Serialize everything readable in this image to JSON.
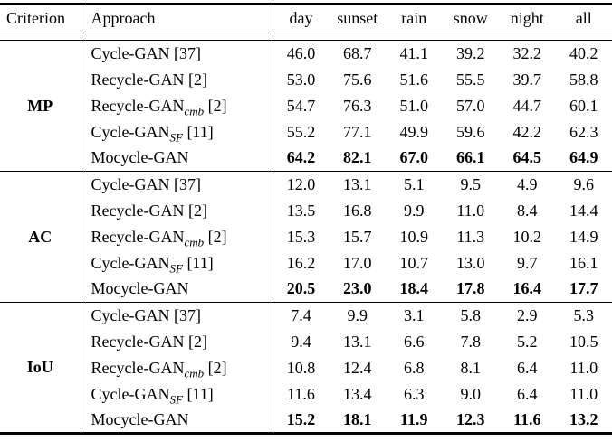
{
  "table": {
    "columns": [
      "Criterion",
      "Approach",
      "day",
      "sunset",
      "rain",
      "snow",
      "night",
      "all"
    ],
    "groups": [
      {
        "criterion": "MP",
        "rows": [
          {
            "approach": "Cycle-GAN",
            "sub": "",
            "ref": "[37]",
            "bold": false,
            "values": [
              "46.0",
              "68.7",
              "41.1",
              "39.2",
              "32.2",
              "40.2"
            ]
          },
          {
            "approach": "Recycle-GAN",
            "sub": "",
            "ref": "[2]",
            "bold": false,
            "values": [
              "53.0",
              "75.6",
              "51.6",
              "55.5",
              "39.7",
              "58.8"
            ]
          },
          {
            "approach": "Recycle-GAN",
            "sub": "cmb",
            "ref": "[2]",
            "bold": false,
            "values": [
              "54.7",
              "76.3",
              "51.0",
              "57.0",
              "44.7",
              "60.1"
            ]
          },
          {
            "approach": "Cycle-GAN",
            "sub": "SF",
            "ref": "[11]",
            "bold": false,
            "values": [
              "55.2",
              "77.1",
              "49.9",
              "59.6",
              "42.2",
              "62.3"
            ]
          },
          {
            "approach": "Mocycle-GAN",
            "sub": "",
            "ref": "",
            "bold": true,
            "values": [
              "64.2",
              "82.1",
              "67.0",
              "66.1",
              "64.5",
              "64.9"
            ]
          }
        ]
      },
      {
        "criterion": "AC",
        "rows": [
          {
            "approach": "Cycle-GAN",
            "sub": "",
            "ref": "[37]",
            "bold": false,
            "values": [
              "12.0",
              "13.1",
              "5.1",
              "9.5",
              "4.9",
              "9.6"
            ]
          },
          {
            "approach": "Recycle-GAN",
            "sub": "",
            "ref": "[2]",
            "bold": false,
            "values": [
              "13.5",
              "16.8",
              "9.9",
              "11.0",
              "8.4",
              "14.4"
            ]
          },
          {
            "approach": "Recycle-GAN",
            "sub": "cmb",
            "ref": "[2]",
            "bold": false,
            "values": [
              "15.3",
              "15.7",
              "10.9",
              "11.3",
              "10.2",
              "14.9"
            ]
          },
          {
            "approach": "Cycle-GAN",
            "sub": "SF",
            "ref": "[11]",
            "bold": false,
            "values": [
              "16.2",
              "17.0",
              "10.7",
              "13.0",
              "9.7",
              "16.1"
            ]
          },
          {
            "approach": "Mocycle-GAN",
            "sub": "",
            "ref": "",
            "bold": true,
            "values": [
              "20.5",
              "23.0",
              "18.4",
              "17.8",
              "16.4",
              "17.7"
            ]
          }
        ]
      },
      {
        "criterion": "IoU",
        "rows": [
          {
            "approach": "Cycle-GAN",
            "sub": "",
            "ref": "[37]",
            "bold": false,
            "values": [
              "7.4",
              "9.9",
              "3.1",
              "5.8",
              "2.9",
              "5.3"
            ]
          },
          {
            "approach": "Recycle-GAN",
            "sub": "",
            "ref": "[2]",
            "bold": false,
            "values": [
              "9.4",
              "13.1",
              "6.6",
              "7.8",
              "5.2",
              "10.5"
            ]
          },
          {
            "approach": "Recycle-GAN",
            "sub": "cmb",
            "ref": "[2]",
            "bold": false,
            "values": [
              "10.8",
              "12.4",
              "6.8",
              "8.1",
              "6.4",
              "11.0"
            ]
          },
          {
            "approach": "Cycle-GAN",
            "sub": "SF",
            "ref": "[11]",
            "bold": false,
            "values": [
              "11.6",
              "13.4",
              "6.3",
              "9.0",
              "6.4",
              "11.0"
            ]
          },
          {
            "approach": "Mocycle-GAN",
            "sub": "",
            "ref": "",
            "bold": true,
            "values": [
              "15.2",
              "18.1",
              "11.9",
              "12.3",
              "11.6",
              "13.2"
            ]
          }
        ]
      }
    ],
    "colors": {
      "text": "#000000",
      "background": "#ffffff",
      "rule": "#000000"
    }
  }
}
